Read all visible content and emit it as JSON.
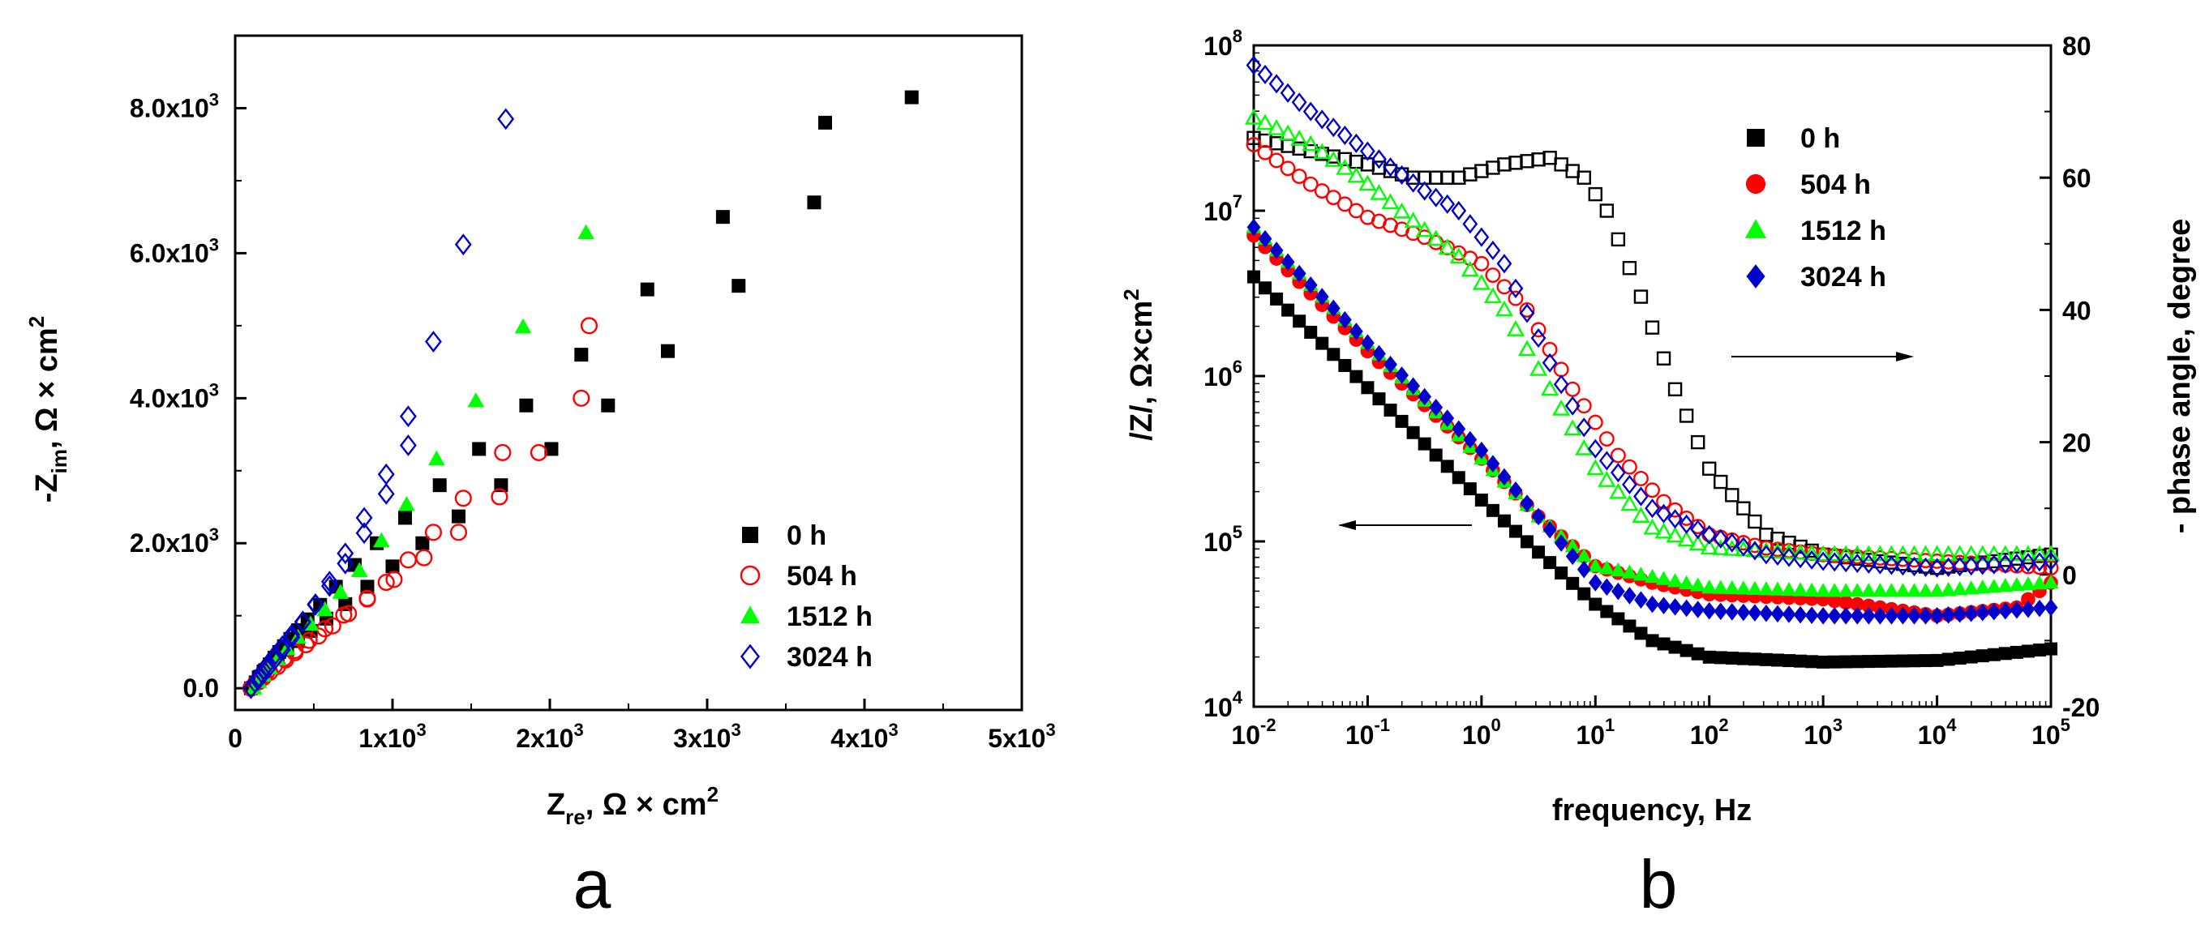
{
  "chart_data": [
    {
      "type": "scatter",
      "panel_label": "a",
      "xlim": [
        0,
        5000
      ],
      "ylim": [
        -300,
        9000
      ],
      "x_ticks": [
        0,
        1000,
        2000,
        3000,
        4000,
        5000
      ],
      "x_tick_labels": [
        "0",
        "1x10",
        "2x10",
        "3x10",
        "4x10",
        "5x10"
      ],
      "x_tick_exps": [
        "",
        "3",
        "3",
        "3",
        "3",
        "3"
      ],
      "y_ticks": [
        0,
        2000,
        4000,
        6000,
        8000
      ],
      "y_tick_labels": [
        "0.0",
        "2.0x10",
        "4.0x10",
        "6.0x10",
        "8.0x10"
      ],
      "y_tick_exps": [
        "",
        "3",
        "3",
        "3",
        "3"
      ],
      "xlabel": {
        "main": "Z",
        "sub": "re",
        "rest": ", Ω × cm",
        "sup": "2"
      },
      "ylabel": {
        "main": "-Z",
        "sub": "im",
        "rest": ", Ω × cm",
        "sup": "2"
      },
      "legend_position": "bottom-right",
      "series": [
        {
          "name": "0 h",
          "color": "#000000",
          "marker": "square",
          "filled": true,
          "points": [
            [
              100,
              0
            ],
            [
              130,
              80
            ],
            [
              160,
              160
            ],
            [
              190,
              250
            ],
            [
              220,
              330
            ],
            [
              250,
              420
            ],
            [
              280,
              500
            ],
            [
              310,
              580
            ],
            [
              350,
              680
            ],
            [
              400,
              800
            ],
            [
              460,
              950
            ],
            [
              540,
              1150
            ],
            [
              640,
              1400
            ],
            [
              760,
              1700
            ],
            [
              900,
              2000
            ],
            [
              1080,
              2350
            ],
            [
              1300,
              2800
            ],
            [
              1550,
              3300
            ],
            [
              1850,
              3900
            ],
            [
              2200,
              4600
            ],
            [
              2620,
              5500
            ],
            [
              3100,
              6500
            ],
            [
              3750,
              7800
            ],
            [
              4300,
              8150
            ],
            [
              3680,
              6700
            ],
            [
              3200,
              5550
            ],
            [
              2750,
              4650
            ],
            [
              2370,
              3900
            ],
            [
              2010,
              3300
            ],
            [
              1690,
              2800
            ],
            [
              1420,
              2370
            ],
            [
              1190,
              2000
            ],
            [
              1000,
              1680
            ],
            [
              840,
              1400
            ],
            [
              700,
              1160
            ],
            [
              580,
              960
            ],
            [
              480,
              790
            ],
            [
              400,
              650
            ],
            [
              330,
              530
            ],
            [
              270,
              420
            ],
            [
              220,
              320
            ],
            [
              180,
              230
            ],
            [
              150,
              150
            ]
          ]
        },
        {
          "name": "504 h",
          "color": "#ff0000",
          "marker": "circle",
          "filled": false,
          "points": [
            [
              100,
              0
            ],
            [
              130,
              70
            ],
            [
              160,
              140
            ],
            [
              200,
              220
            ],
            [
              250,
              310
            ],
            [
              310,
              410
            ],
            [
              380,
              520
            ],
            [
              470,
              660
            ],
            [
              570,
              820
            ],
            [
              690,
              1010
            ],
            [
              840,
              1240
            ],
            [
              1010,
              1500
            ],
            [
              1200,
              1800
            ],
            [
              1420,
              2150
            ],
            [
              1680,
              2640
            ],
            [
              1930,
              3250
            ],
            [
              2200,
              4000
            ],
            [
              2250,
              5000
            ],
            [
              1700,
              3250
            ],
            [
              1450,
              2620
            ],
            [
              1260,
              2150
            ],
            [
              1100,
              1770
            ],
            [
              960,
              1460
            ],
            [
              840,
              1230
            ],
            [
              720,
              1030
            ],
            [
              620,
              860
            ],
            [
              530,
              720
            ],
            [
              450,
              600
            ],
            [
              380,
              490
            ],
            [
              320,
              390
            ],
            [
              270,
              300
            ],
            [
              220,
              220
            ],
            [
              180,
              150
            ],
            [
              150,
              90
            ]
          ]
        },
        {
          "name": "1512 h",
          "color": "#00ff00",
          "marker": "triangle",
          "filled": true,
          "points": [
            [
              120,
              0
            ],
            [
              150,
              90
            ],
            [
              180,
              180
            ],
            [
              220,
              280
            ],
            [
              270,
              400
            ],
            [
              330,
              540
            ],
            [
              400,
              700
            ],
            [
              480,
              880
            ],
            [
              570,
              1080
            ],
            [
              670,
              1320
            ],
            [
              790,
              1620
            ],
            [
              930,
              2030
            ],
            [
              1090,
              2530
            ],
            [
              1280,
              3160
            ],
            [
              1530,
              3960
            ],
            [
              1830,
              4980
            ],
            [
              2230,
              6280
            ],
            [
              1830,
              4980
            ],
            [
              1530,
              3960
            ],
            [
              1280,
              3160
            ],
            [
              1090,
              2530
            ],
            [
              930,
              2030
            ],
            [
              790,
              1620
            ],
            [
              670,
              1320
            ],
            [
              570,
              1080
            ],
            [
              480,
              880
            ],
            [
              400,
              700
            ],
            [
              330,
              540
            ],
            [
              270,
              400
            ],
            [
              220,
              280
            ],
            [
              180,
              180
            ],
            [
              150,
              90
            ]
          ]
        },
        {
          "name": "3024 h",
          "color": "#0000cc",
          "marker": "diamond",
          "filled": false,
          "points": [
            [
              100,
              0
            ],
            [
              125,
              80
            ],
            [
              150,
              160
            ],
            [
              180,
              250
            ],
            [
              210,
              340
            ],
            [
              250,
              450
            ],
            [
              300,
              580
            ],
            [
              360,
              740
            ],
            [
              430,
              920
            ],
            [
              510,
              1150
            ],
            [
              600,
              1410
            ],
            [
              700,
              1720
            ],
            [
              820,
              2140
            ],
            [
              960,
              2680
            ],
            [
              1100,
              3350
            ],
            [
              1260,
              4780
            ],
            [
              1450,
              6120
            ],
            [
              1720,
              7850
            ],
            [
              1100,
              3750
            ],
            [
              960,
              2950
            ],
            [
              820,
              2350
            ],
            [
              700,
              1860
            ],
            [
              600,
              1470
            ],
            [
              510,
              1160
            ],
            [
              430,
              910
            ],
            [
              360,
              700
            ],
            [
              300,
              530
            ],
            [
              250,
              390
            ],
            [
              210,
              280
            ],
            [
              175,
              190
            ],
            [
              145,
              110
            ]
          ]
        }
      ]
    },
    {
      "type": "scatter",
      "panel_label": "b",
      "x_log": true,
      "xlim": [
        0.01,
        100000
      ],
      "ylim_left": [
        10000,
        100000000
      ],
      "ylim_right": [
        -20,
        80
      ],
      "x_tick_exps": [
        "-2",
        "-1",
        "0",
        "1",
        "2",
        "3",
        "4",
        "5"
      ],
      "y_left_tick_exps": [
        "4",
        "5",
        "6",
        "7",
        "8"
      ],
      "y_right_ticks": [
        -20,
        0,
        20,
        40,
        60,
        80
      ],
      "y_right_tick_labels": [
        "-20",
        "0",
        "20",
        "40",
        "60",
        "80"
      ],
      "tick_base": "10",
      "xlabel": "frequency, Hz",
      "ylabel_left": {
        "main": "/Z/, Ω×cm",
        "sup": "2"
      },
      "ylabel_right": "- phase angle, degree",
      "legend_position": "top-right",
      "modulus_filled_markers": true,
      "phase_open_markers": true,
      "series": [
        {
          "name": "0 h",
          "color": "#000000",
          "marker": "square",
          "modulus_nodes": [
            [
              -2,
              6.6
            ],
            [
              -1,
              5.93
            ],
            [
              0,
              5.25
            ],
            [
              1,
              4.62
            ],
            [
              1.5,
              4.4
            ],
            [
              2,
              4.3
            ],
            [
              3,
              4.27
            ],
            [
              4,
              4.28
            ],
            [
              5,
              4.35
            ]
          ],
          "phase_nodes": [
            [
              -2,
              66
            ],
            [
              -1.5,
              64
            ],
            [
              -1,
              62
            ],
            [
              -0.6,
              60
            ],
            [
              -0.2,
              60
            ],
            [
              0.2,
              62
            ],
            [
              0.6,
              63
            ],
            [
              0.9,
              60
            ],
            [
              1.1,
              55
            ],
            [
              1.4,
              42
            ],
            [
              1.7,
              28
            ],
            [
              2,
              16
            ],
            [
              2.5,
              6
            ],
            [
              3,
              3
            ],
            [
              3.5,
              2
            ],
            [
              4,
              1
            ],
            [
              4.5,
              2
            ],
            [
              5,
              3
            ]
          ]
        },
        {
          "name": "504 h",
          "color": "#ff0000",
          "marker": "circle",
          "modulus_nodes": [
            [
              -2,
              6.85
            ],
            [
              -1,
              6.15
            ],
            [
              0,
              5.5
            ],
            [
              0.5,
              5.15
            ],
            [
              1,
              4.85
            ],
            [
              1.5,
              4.75
            ],
            [
              2,
              4.68
            ],
            [
              3,
              4.65
            ],
            [
              4,
              4.55
            ],
            [
              4.7,
              4.6
            ],
            [
              5,
              4.75
            ]
          ],
          "phase_nodes": [
            [
              -2,
              65
            ],
            [
              -1.5,
              59
            ],
            [
              -1,
              54
            ],
            [
              -0.5,
              51
            ],
            [
              0,
              47
            ],
            [
              0.4,
              40
            ],
            [
              0.8,
              28
            ],
            [
              1.2,
              18
            ],
            [
              1.6,
              11
            ],
            [
              2,
              6
            ],
            [
              2.5,
              4
            ],
            [
              3,
              3
            ],
            [
              4,
              2
            ],
            [
              5,
              1
            ]
          ]
        },
        {
          "name": "1512 h",
          "color": "#00ff00",
          "marker": "triangle",
          "modulus_nodes": [
            [
              -2,
              6.9
            ],
            [
              -1,
              6.2
            ],
            [
              0,
              5.5
            ],
            [
              0.5,
              5.15
            ],
            [
              1,
              4.85
            ],
            [
              2,
              4.72
            ],
            [
              3,
              4.7
            ],
            [
              4,
              4.7
            ],
            [
              5,
              4.75
            ]
          ],
          "phase_nodes": [
            [
              -2,
              69
            ],
            [
              -1.5,
              65
            ],
            [
              -1,
              59
            ],
            [
              -0.5,
              52
            ],
            [
              -0.2,
              48
            ],
            [
              0.2,
              40
            ],
            [
              0.6,
              28
            ],
            [
              1,
              16
            ],
            [
              1.5,
              7
            ],
            [
              2,
              4
            ],
            [
              3,
              3
            ],
            [
              4,
              3
            ],
            [
              5,
              3
            ]
          ]
        },
        {
          "name": "3024 h",
          "color": "#0000cc",
          "marker": "diamond",
          "modulus_nodes": [
            [
              -2,
              6.9
            ],
            [
              -1,
              6.2
            ],
            [
              0,
              5.55
            ],
            [
              0.5,
              5.15
            ],
            [
              1,
              4.75
            ],
            [
              1.5,
              4.62
            ],
            [
              2,
              4.58
            ],
            [
              3,
              4.55
            ],
            [
              4,
              4.55
            ],
            [
              5,
              4.6
            ]
          ],
          "phase_nodes": [
            [
              -2,
              77
            ],
            [
              -1.5,
              70
            ],
            [
              -1,
              64
            ],
            [
              -0.5,
              58
            ],
            [
              -0.2,
              55
            ],
            [
              0.2,
              47
            ],
            [
              0.6,
              32
            ],
            [
              1,
              19
            ],
            [
              1.5,
              10
            ],
            [
              2,
              6
            ],
            [
              2.5,
              3
            ],
            [
              3,
              2
            ],
            [
              4,
              1
            ],
            [
              5,
              2
            ]
          ]
        }
      ]
    }
  ]
}
